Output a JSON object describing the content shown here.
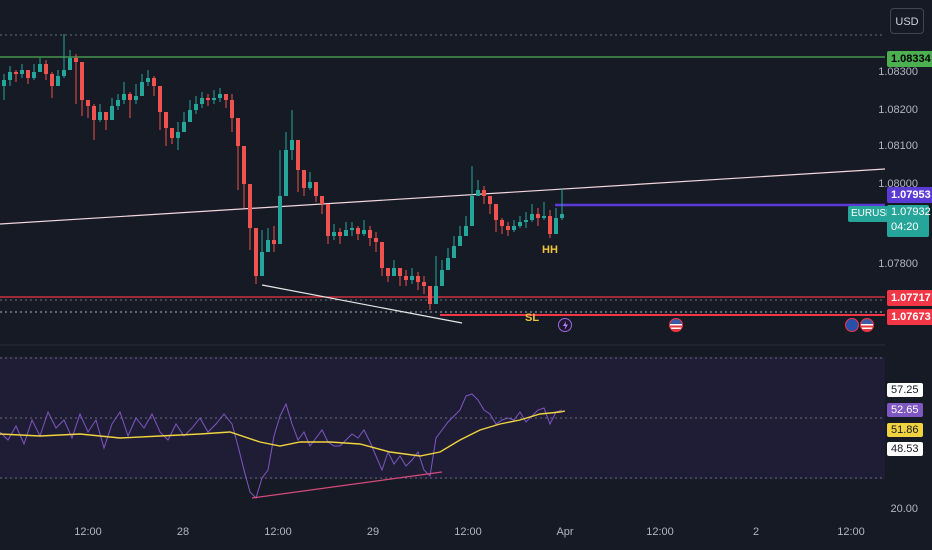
{
  "toolbar": {
    "currency_label": "USD"
  },
  "symbol": {
    "name": "EURUSD",
    "last_price": "1.07932",
    "countdown": "04:20"
  },
  "price_axis": {
    "labels": [
      "1.08300",
      "1.08200",
      "1.08100",
      "1.08000",
      "1.07800"
    ]
  },
  "price_tags": {
    "resistance": "1.08334",
    "target": "1.07953",
    "support_upper": "1.07717",
    "support_lower": "1.07673"
  },
  "annotations": {
    "hh": "HH",
    "sl": "SL"
  },
  "rsi_axis": {
    "label_bottom": "20.00"
  },
  "rsi_tags": {
    "upper": "57.25",
    "rsi": "52.65",
    "ma": "51.86",
    "lower": "48.53"
  },
  "time_axis": {
    "labels": [
      "12:00",
      "28",
      "12:00",
      "29",
      "12:00",
      "Apr",
      "12:00",
      "2",
      "12:00"
    ]
  },
  "colors": {
    "background": "#161a25",
    "bull": "#26a69a",
    "bear": "#ef5350",
    "resistance_line": "#4caf50",
    "support_line": "#f23645",
    "target_line": "#5b3bd6",
    "rsi_line": "#7e57c2",
    "rsi_ma": "#f0d33f"
  }
}
